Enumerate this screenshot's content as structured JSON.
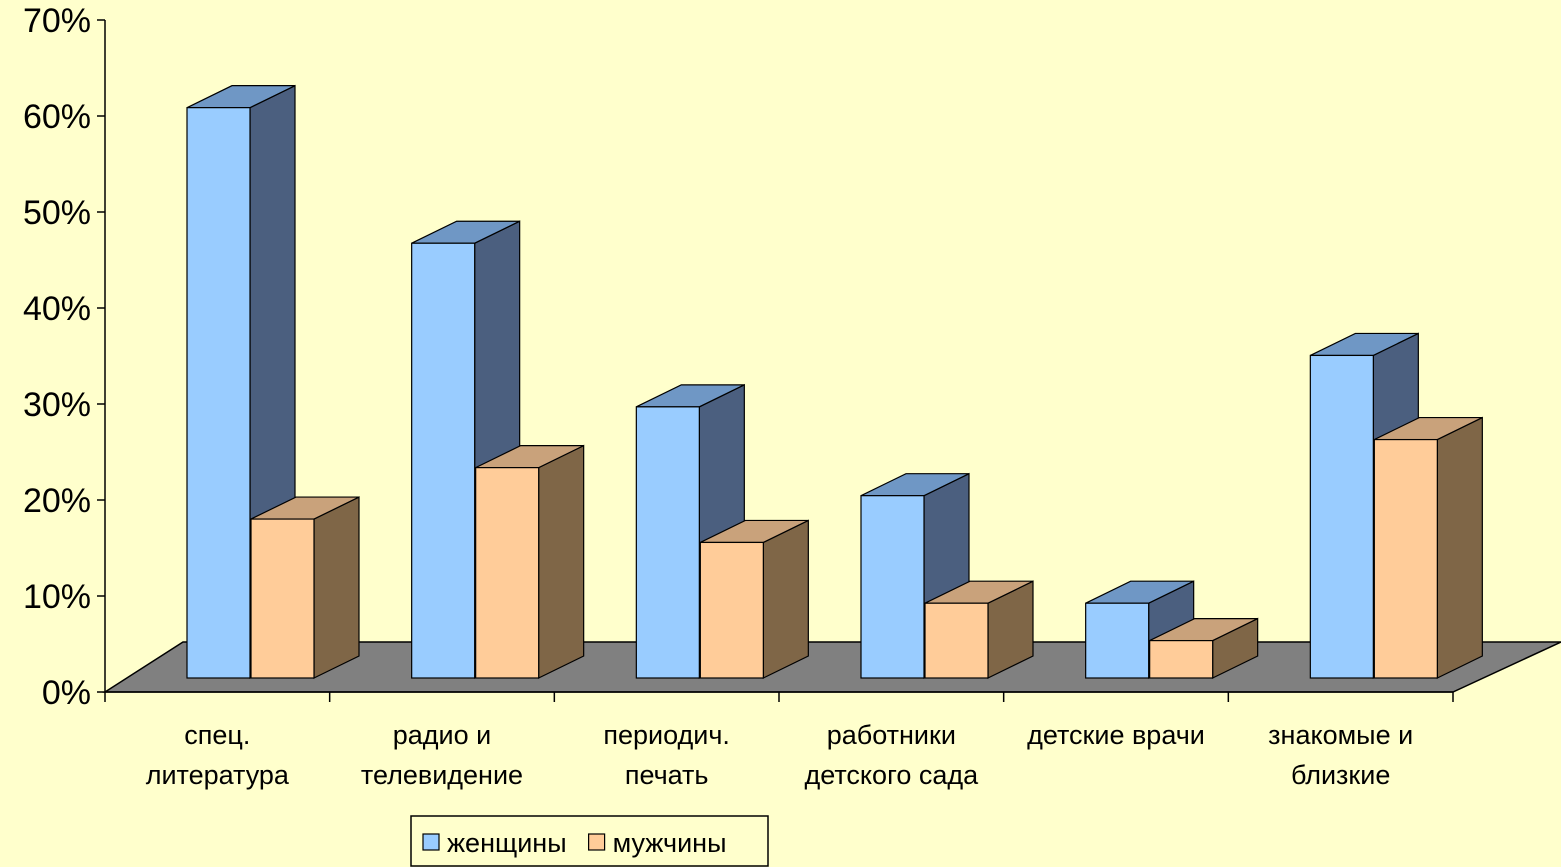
{
  "chart_data": {
    "type": "bar",
    "categories": [
      [
        "спец.",
        "литература"
      ],
      [
        "радио и",
        "телевидение"
      ],
      [
        "периодич.",
        "печать"
      ],
      [
        "работники",
        "детского сада"
      ],
      [
        "детские врачи"
      ],
      [
        "знакомые и",
        "близкие"
      ]
    ],
    "series": [
      {
        "name": "женщины",
        "values": [
          61,
          46.5,
          29,
          19.5,
          8,
          34.5
        ],
        "color": "#99CCFF",
        "side_color": "#4B5F7F",
        "top_color": "#6F97C5"
      },
      {
        "name": "мужчины",
        "values": [
          17,
          22.5,
          14.5,
          8,
          4,
          25.5
        ],
        "color": "#FFCC99",
        "side_color": "#7F6647",
        "top_color": "#C9A27B"
      }
    ],
    "y_ticks": [
      "0%",
      "10%",
      "20%",
      "30%",
      "40%",
      "50%",
      "60%",
      "70%"
    ],
    "ylim": [
      0,
      70
    ],
    "legend_position": "bottom",
    "floor_color": "#808080",
    "background": "#FFFFCC"
  }
}
